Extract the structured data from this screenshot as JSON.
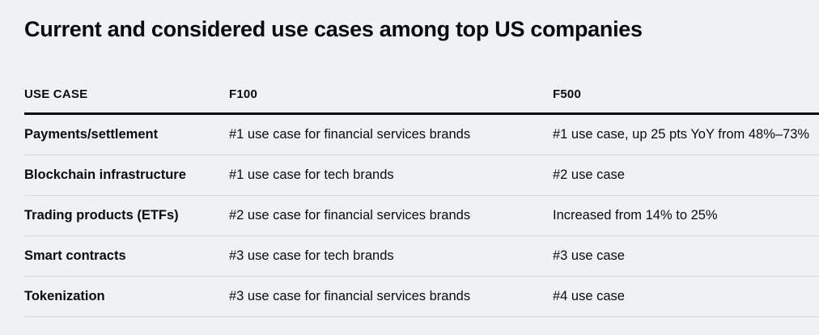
{
  "page": {
    "background_color": "#f0f1f2",
    "text_color": "#0a0b0d",
    "divider_color": "#d7d9db",
    "header_rule_color": "#0a0b0d"
  },
  "chart_data": {
    "type": "table",
    "title": "Current and considered use cases among top US companies",
    "columns": [
      "USE CASE",
      "F100",
      "F500"
    ],
    "rows": [
      {
        "use_case": "Payments/settlement",
        "f100": "#1 use case for financial services brands",
        "f500": "#1 use case, up 25 pts YoY from 48%–73%"
      },
      {
        "use_case": "Blockchain infrastructure",
        "f100": "#1 use case for tech brands",
        "f500": "#2 use case"
      },
      {
        "use_case": "Trading products (ETFs)",
        "f100": "#2 use case for financial services brands",
        "f500": "Increased from 14% to 25%"
      },
      {
        "use_case": "Smart contracts",
        "f100": "#3 use case for tech brands",
        "f500": "#3 use case"
      },
      {
        "use_case": "Tokenization",
        "f100": "#3 use case for financial services brands",
        "f500": "#4 use case"
      }
    ]
  }
}
